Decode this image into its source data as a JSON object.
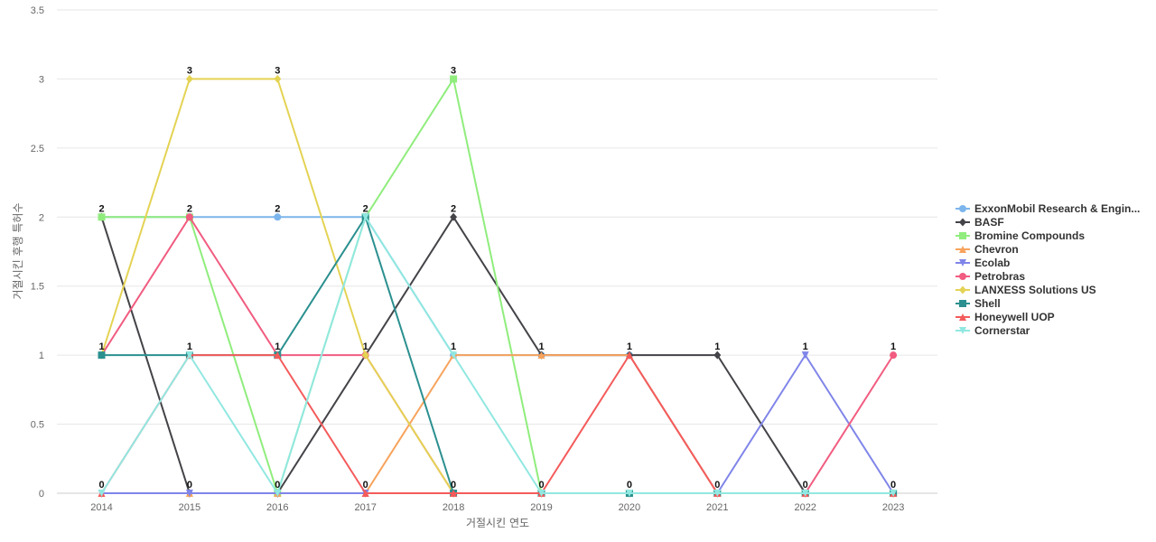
{
  "chart_data": {
    "type": "line",
    "xlabel": "거절시킨 연도",
    "ylabel": "거절시킨 후행 특허수",
    "categories": [
      "2014",
      "2015",
      "2016",
      "2017",
      "2018",
      "2019",
      "2020",
      "2021",
      "2022",
      "2023"
    ],
    "ylim": [
      0,
      3.5
    ],
    "yticks": [
      "0",
      "0.5",
      "1",
      "1.5",
      "2",
      "2.5",
      "3",
      "3.5"
    ],
    "grid": "horizontal",
    "legend_position": "right",
    "data_labels": [
      "0",
      "0",
      "0",
      "1",
      "0",
      "0",
      "0",
      "0",
      "0",
      "0"
    ],
    "data_labels_full": [
      [
        "1",
        "2",
        "0"
      ],
      [
        "3",
        "2",
        "1",
        "0"
      ],
      [
        "3",
        "2",
        "1",
        "0"
      ],
      [
        "2",
        "1",
        "0"
      ],
      [
        "3",
        "2",
        "1",
        "0"
      ],
      [
        "1",
        "0"
      ],
      [
        "1",
        "0"
      ],
      [
        "1",
        "0"
      ],
      [
        "1",
        "0"
      ],
      [
        "1",
        "0"
      ]
    ],
    "series": [
      {
        "name": "ExxonMobil Research & Engin...",
        "color": "#7cb5ec",
        "marker": "circle",
        "values": [
          2,
          2,
          2,
          2,
          1,
          1,
          1,
          0,
          0,
          0
        ]
      },
      {
        "name": "BASF",
        "color": "#434348",
        "marker": "diamond",
        "values": [
          2,
          0,
          0,
          1,
          2,
          1,
          1,
          1,
          0,
          0
        ]
      },
      {
        "name": "Bromine Compounds",
        "color": "#90ed7d",
        "marker": "square",
        "values": [
          2,
          2,
          0,
          2,
          3,
          0,
          0,
          0,
          0,
          0
        ]
      },
      {
        "name": "Chevron",
        "color": "#f7a35c",
        "marker": "triangle",
        "values": [
          0,
          0,
          0,
          0,
          1,
          1,
          1,
          0,
          0,
          0
        ]
      },
      {
        "name": "Ecolab",
        "color": "#8085e9",
        "marker": "triangle-down",
        "values": [
          0,
          0,
          0,
          0,
          0,
          0,
          0,
          0,
          1,
          0
        ]
      },
      {
        "name": "Petrobras",
        "color": "#f15c80",
        "marker": "circle",
        "values": [
          1,
          2,
          1,
          1,
          0,
          0,
          0,
          0,
          0,
          1
        ]
      },
      {
        "name": "LANXESS Solutions US",
        "color": "#e4d354",
        "marker": "diamond",
        "values": [
          1,
          3,
          3,
          1,
          0,
          0,
          0,
          0,
          0,
          0
        ]
      },
      {
        "name": "Shell",
        "color": "#2b908f",
        "marker": "square",
        "values": [
          1,
          1,
          1,
          2,
          0,
          0,
          0,
          0,
          0,
          0
        ]
      },
      {
        "name": "Honeywell UOP",
        "color": "#f45b5b",
        "marker": "triangle",
        "values": [
          0,
          1,
          1,
          0,
          0,
          0,
          1,
          0,
          0,
          0
        ]
      },
      {
        "name": "Cornerstar",
        "color": "#91e8e1",
        "marker": "triangle-down",
        "values": [
          0,
          1,
          0,
          2,
          1,
          0,
          0,
          0,
          0,
          0
        ]
      }
    ],
    "point_labels": [
      {
        "x": "2014",
        "y": 2,
        "text": "2"
      },
      {
        "x": "2014",
        "y": 1,
        "text": "1"
      },
      {
        "x": "2014",
        "y": 0,
        "text": "0"
      },
      {
        "x": "2015",
        "y": 3,
        "text": "3"
      },
      {
        "x": "2015",
        "y": 2,
        "text": "2"
      },
      {
        "x": "2015",
        "y": 1,
        "text": "1"
      },
      {
        "x": "2015",
        "y": 0,
        "text": "0"
      },
      {
        "x": "2016",
        "y": 3,
        "text": "3"
      },
      {
        "x": "2016",
        "y": 2,
        "text": "2"
      },
      {
        "x": "2016",
        "y": 1,
        "text": "1"
      },
      {
        "x": "2016",
        "y": 0,
        "text": "0"
      },
      {
        "x": "2017",
        "y": 2,
        "text": "2"
      },
      {
        "x": "2017",
        "y": 1,
        "text": "1"
      },
      {
        "x": "2017",
        "y": 0,
        "text": "0"
      },
      {
        "x": "2018",
        "y": 3,
        "text": "3"
      },
      {
        "x": "2018",
        "y": 2,
        "text": "2"
      },
      {
        "x": "2018",
        "y": 1,
        "text": "1"
      },
      {
        "x": "2018",
        "y": 0,
        "text": "0"
      },
      {
        "x": "2019",
        "y": 1,
        "text": "1"
      },
      {
        "x": "2019",
        "y": 0,
        "text": "0"
      },
      {
        "x": "2020",
        "y": 1,
        "text": "1"
      },
      {
        "x": "2020",
        "y": 0,
        "text": "0"
      },
      {
        "x": "2021",
        "y": 1,
        "text": "1"
      },
      {
        "x": "2021",
        "y": 0,
        "text": "0"
      },
      {
        "x": "2022",
        "y": 1,
        "text": "1"
      },
      {
        "x": "2022",
        "y": 0,
        "text": "0"
      },
      {
        "x": "2023",
        "y": 1,
        "text": "1"
      },
      {
        "x": "2023",
        "y": 0,
        "text": "0"
      }
    ]
  }
}
